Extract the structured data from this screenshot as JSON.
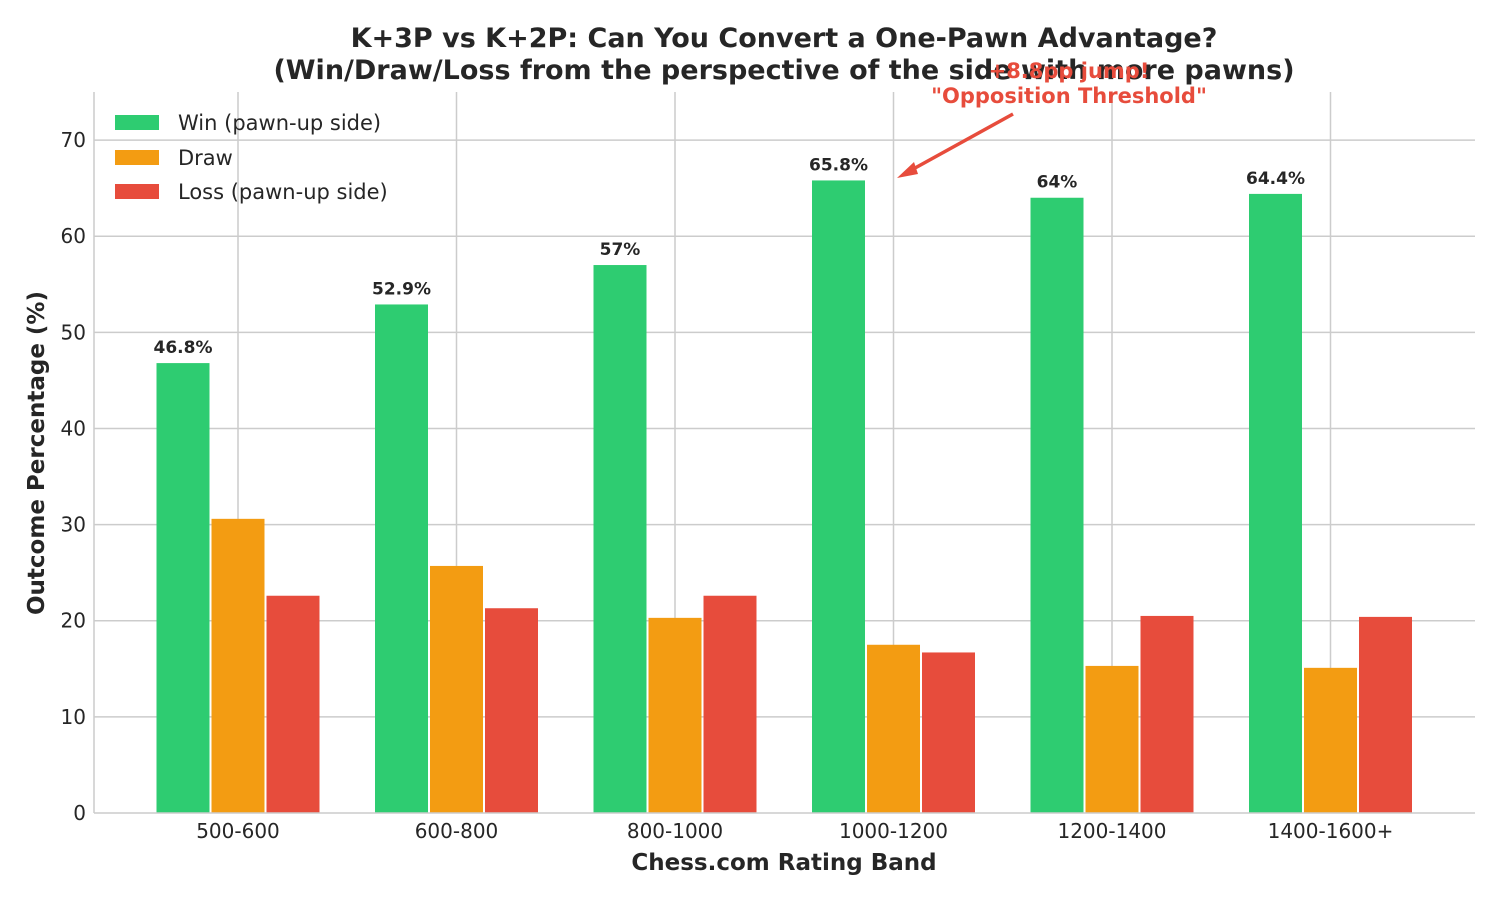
{
  "chart_data": {
    "type": "bar",
    "title_line1": "K+3P vs K+2P: Can You Convert a One-Pawn Advantage?",
    "title_line2": "(Win/Draw/Loss from the perspective of the side with more pawns)",
    "xlabel": "Chess.com Rating Band",
    "ylabel": "Outcome Percentage (%)",
    "categories": [
      "500-600",
      "600-800",
      "800-1000",
      "1000-1200",
      "1200-1400",
      "1400-1600+"
    ],
    "ylim": [
      0,
      75
    ],
    "yticks": [
      0,
      10,
      20,
      30,
      40,
      50,
      60,
      70
    ],
    "grid": true,
    "legend_position": "top-left",
    "series": [
      {
        "name": "Win (pawn-up side)",
        "color": "#2ecc71",
        "values": [
          46.8,
          52.9,
          57.0,
          65.8,
          64.0,
          64.4
        ]
      },
      {
        "name": "Draw",
        "color": "#f39c12",
        "values": [
          30.6,
          25.7,
          20.3,
          17.5,
          15.3,
          15.1
        ]
      },
      {
        "name": "Loss (pawn-up side)",
        "color": "#e74c3c",
        "values": [
          22.6,
          21.3,
          22.6,
          16.7,
          20.5,
          20.4
        ]
      }
    ],
    "win_labels": [
      "46.8%",
      "52.9%",
      "57%",
      "65.8%",
      "64%",
      "64.4%"
    ],
    "annotation": {
      "line1": "+8.8pp jump!",
      "line2": "\"Opposition Threshold\"",
      "color": "#e74c3c",
      "target_category": "1000-1200",
      "target_value": 66
    }
  }
}
